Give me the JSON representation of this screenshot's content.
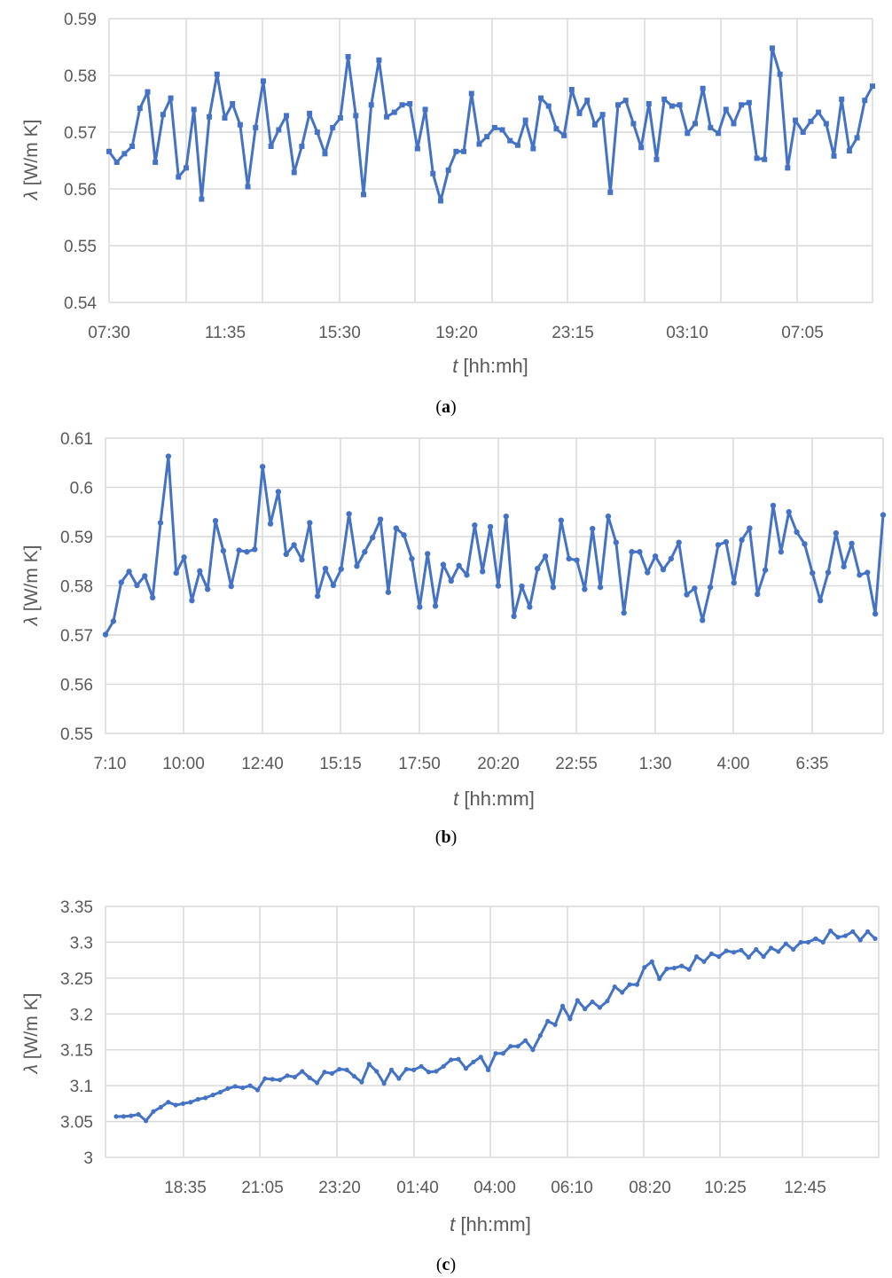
{
  "colors": {
    "series": "#4472c4",
    "grid": "#d9d9d9",
    "text": "#595959"
  },
  "chart_data": [
    {
      "type": "line",
      "caption_open": "(",
      "caption_letter": "a",
      "caption_close": ")",
      "xlabel_italic": "t",
      "xlabel_rest": " [hh:mh]",
      "ylabel_italic": "λ",
      "ylabel_rest": " [W/m K]",
      "ylim": [
        0.54,
        0.59
      ],
      "ytick_labels": [
        "0.54",
        "0.55",
        "0.56",
        "0.57",
        "0.58",
        "0.59"
      ],
      "xtick_labels": [
        "07:30",
        "11:35",
        "15:30",
        "19:20",
        "23:15",
        "03:10",
        "07:05"
      ],
      "marker": "square",
      "grid": true,
      "values": [
        0.5666,
        0.5647,
        0.5662,
        0.5675,
        0.5742,
        0.5771,
        0.5647,
        0.5731,
        0.576,
        0.5621,
        0.5637,
        0.574,
        0.5582,
        0.5727,
        0.5802,
        0.5725,
        0.575,
        0.5713,
        0.5604,
        0.5708,
        0.579,
        0.5675,
        0.5704,
        0.5729,
        0.5629,
        0.5675,
        0.5733,
        0.57,
        0.5662,
        0.5708,
        0.5725,
        0.5833,
        0.5729,
        0.559,
        0.5748,
        0.5827,
        0.5727,
        0.5735,
        0.5748,
        0.575,
        0.5671,
        0.574,
        0.5627,
        0.5579,
        0.5633,
        0.5666,
        0.5666,
        0.5768,
        0.5679,
        0.5692,
        0.5708,
        0.5704,
        0.5685,
        0.5677,
        0.5721,
        0.5671,
        0.576,
        0.5746,
        0.5706,
        0.5694,
        0.5775,
        0.5733,
        0.5756,
        0.5713,
        0.5731,
        0.5594,
        0.5748,
        0.5756,
        0.5715,
        0.5673,
        0.575,
        0.5652,
        0.5758,
        0.5746,
        0.5748,
        0.5698,
        0.5715,
        0.5777,
        0.5708,
        0.5698,
        0.574,
        0.5715,
        0.5748,
        0.5752,
        0.5654,
        0.5652,
        0.5848,
        0.5802,
        0.5637,
        0.5721,
        0.57,
        0.5719,
        0.5735,
        0.5715,
        0.5658,
        0.5758,
        0.5667,
        0.569,
        0.5756,
        0.5781
      ]
    },
    {
      "type": "line",
      "caption_open": "(",
      "caption_letter": "b",
      "caption_close": ")",
      "xlabel_italic": "t",
      "xlabel_rest": " [hh:mm]",
      "ylabel_italic": "λ",
      "ylabel_rest": " [W/m K]",
      "ylim": [
        0.55,
        0.61
      ],
      "ytick_labels": [
        "0.55",
        "0.56",
        "0.57",
        "0.58",
        "0.59",
        "0.6",
        "0.61"
      ],
      "xtick_labels": [
        "7:10",
        "10:00",
        "12:40",
        "15:15",
        "17:50",
        "20:20",
        "22:55",
        "1:30",
        "4:00",
        "6:35"
      ],
      "marker": "circle",
      "grid": true,
      "values": [
        0.5701,
        0.5728,
        0.5807,
        0.5829,
        0.5801,
        0.582,
        0.5776,
        0.5928,
        0.6063,
        0.5826,
        0.5858,
        0.577,
        0.583,
        0.5793,
        0.5932,
        0.5871,
        0.5799,
        0.5872,
        0.5869,
        0.5874,
        0.6042,
        0.5926,
        0.5991,
        0.5864,
        0.5883,
        0.5853,
        0.5928,
        0.5779,
        0.5835,
        0.5801,
        0.5834,
        0.5946,
        0.584,
        0.5869,
        0.5898,
        0.5935,
        0.5787,
        0.5917,
        0.5903,
        0.5855,
        0.5757,
        0.5865,
        0.5759,
        0.5843,
        0.581,
        0.5841,
        0.5822,
        0.5923,
        0.5829,
        0.592,
        0.58,
        0.5941,
        0.5738,
        0.5799,
        0.5757,
        0.5835,
        0.586,
        0.5797,
        0.5933,
        0.5855,
        0.5852,
        0.5793,
        0.5916,
        0.5797,
        0.5941,
        0.5888,
        0.5745,
        0.5869,
        0.5869,
        0.5827,
        0.586,
        0.5833,
        0.5855,
        0.5888,
        0.5782,
        0.5795,
        0.573,
        0.5797,
        0.5883,
        0.5889,
        0.5806,
        0.5893,
        0.5917,
        0.5783,
        0.5832,
        0.5963,
        0.5869,
        0.595,
        0.5909,
        0.5885,
        0.5826,
        0.577,
        0.5827,
        0.5907,
        0.5839,
        0.5886,
        0.5822,
        0.5827,
        0.5743,
        0.5944
      ]
    },
    {
      "type": "line",
      "caption_open": "(",
      "caption_letter": "c",
      "caption_close": ")",
      "xlabel_italic": "t",
      "xlabel_rest": " [hh:mm]",
      "ylabel_italic": "λ",
      "ylabel_rest": " [W/m K]",
      "ylim": [
        3.0,
        3.35
      ],
      "ytick_labels": [
        "3",
        "3.05",
        "3.1",
        "3.15",
        "3.2",
        "3.25",
        "3.3",
        "3.35"
      ],
      "xtick_labels": [
        "18:35",
        "21:05",
        "23:20",
        "01:40",
        "04:00",
        "06:10",
        "08:20",
        "10:25",
        "12:45"
      ],
      "marker": "circle-small",
      "grid": true,
      "values": [
        3.057,
        3.057,
        3.058,
        3.06,
        3.051,
        3.064,
        3.07,
        3.077,
        3.073,
        3.075,
        3.077,
        3.081,
        3.083,
        3.087,
        3.091,
        3.096,
        3.099,
        3.097,
        3.1,
        3.094,
        3.11,
        3.109,
        3.108,
        3.114,
        3.112,
        3.12,
        3.111,
        3.104,
        3.119,
        3.117,
        3.123,
        3.122,
        3.113,
        3.105,
        3.13,
        3.12,
        3.103,
        3.122,
        3.11,
        3.123,
        3.122,
        3.127,
        3.119,
        3.12,
        3.127,
        3.136,
        3.137,
        3.124,
        3.133,
        3.14,
        3.122,
        3.145,
        3.145,
        3.155,
        3.155,
        3.163,
        3.15,
        3.17,
        3.19,
        3.185,
        3.211,
        3.193,
        3.219,
        3.207,
        3.217,
        3.209,
        3.218,
        3.238,
        3.23,
        3.241,
        3.241,
        3.265,
        3.273,
        3.249,
        3.263,
        3.264,
        3.267,
        3.262,
        3.28,
        3.273,
        3.284,
        3.28,
        3.288,
        3.286,
        3.289,
        3.279,
        3.29,
        3.28,
        3.292,
        3.287,
        3.298,
        3.29,
        3.3,
        3.3,
        3.305,
        3.3,
        3.316,
        3.307,
        3.309,
        3.315,
        3.303,
        3.315,
        3.305
      ]
    }
  ]
}
